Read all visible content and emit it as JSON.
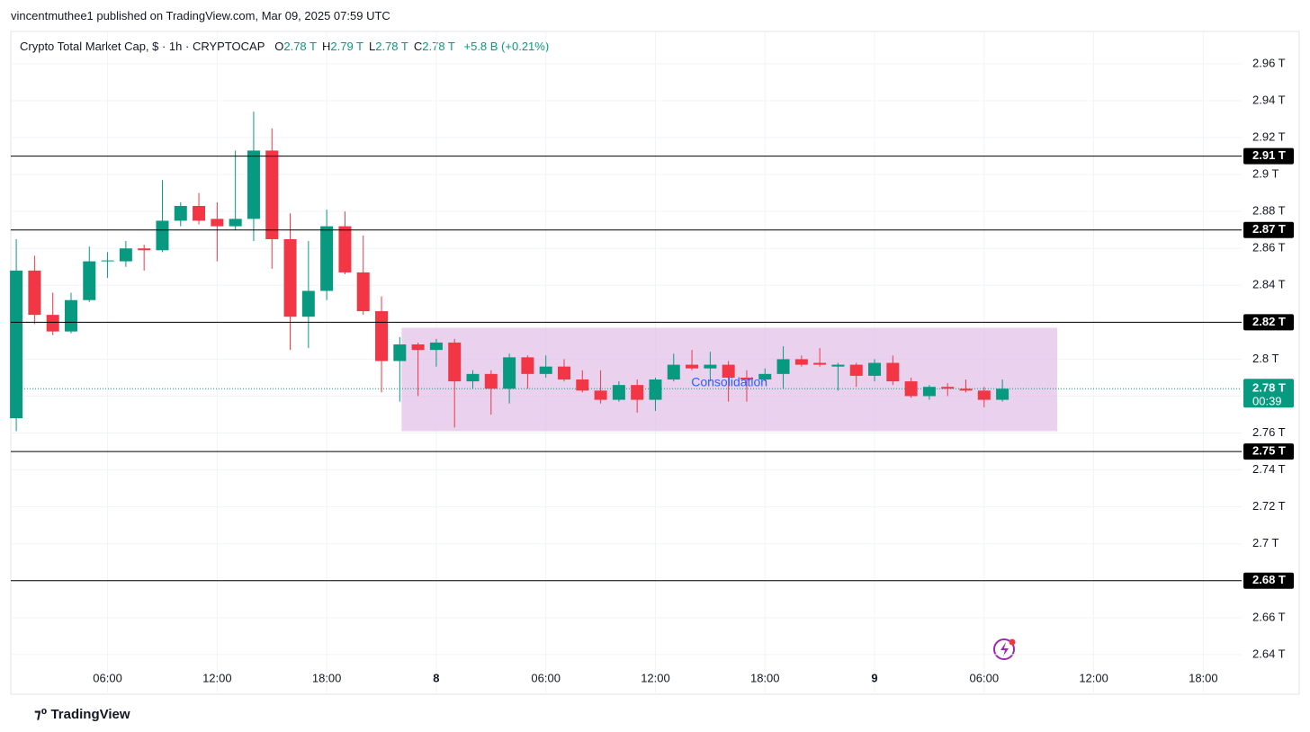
{
  "chart_data": {
    "type": "candlestick",
    "published": "vincentmuthee1 published on TradingView.com, Mar 09, 2025 07:59 UTC",
    "title": "Crypto Total Market Cap, $ · 1h · CRYPTOCAP",
    "ohlc_header": [
      {
        "key": "O",
        "value": "2.78 T"
      },
      {
        "key": "H",
        "value": "2.79 T"
      },
      {
        "key": "L",
        "value": "2.78 T"
      },
      {
        "key": "C",
        "value": "2.78 T"
      }
    ],
    "change": "+5.8 B (+0.21%)",
    "footer": "TradingView",
    "up_color": "#089981",
    "down_color": "#f23645",
    "open": [
      2.768,
      2.848,
      2.824,
      2.815,
      2.832,
      2.853,
      2.853,
      2.86,
      2.859,
      2.875,
      2.883,
      2.876,
      2.872,
      2.876,
      2.913,
      2.865,
      2.823,
      2.837,
      2.872,
      2.847,
      2.826,
      2.799,
      2.808,
      2.805,
      2.809,
      2.788,
      2.792,
      2.784,
      2.801,
      2.792,
      2.796,
      2.789,
      2.783,
      2.778,
      2.786,
      2.778,
      2.789,
      2.797,
      2.795,
      2.797,
      2.79,
      2.789,
      2.792,
      2.8,
      2.798,
      2.796,
      2.797,
      2.791,
      2.798,
      2.788,
      2.78,
      2.785,
      2.784,
      2.783,
      2.778
    ],
    "high": [
      2.865,
      2.856,
      2.836,
      2.836,
      2.861,
      2.858,
      2.864,
      2.862,
      2.897,
      2.885,
      2.89,
      2.885,
      2.913,
      2.934,
      2.925,
      2.879,
      2.864,
      2.881,
      2.88,
      2.867,
      2.834,
      2.812,
      2.809,
      2.811,
      2.811,
      2.794,
      2.794,
      2.803,
      2.802,
      2.802,
      2.8,
      2.794,
      2.794,
      2.788,
      2.789,
      2.79,
      2.803,
      2.805,
      2.804,
      2.799,
      2.794,
      2.795,
      2.807,
      2.802,
      2.806,
      2.798,
      2.798,
      2.8,
      2.802,
      2.79,
      2.786,
      2.787,
      2.789,
      2.785,
      2.789
    ],
    "low": [
      2.761,
      2.819,
      2.813,
      2.814,
      2.831,
      2.844,
      2.85,
      2.848,
      2.858,
      2.872,
      2.873,
      2.853,
      2.87,
      2.864,
      2.849,
      2.805,
      2.806,
      2.832,
      2.846,
      2.824,
      2.782,
      2.777,
      2.78,
      2.796,
      2.763,
      2.784,
      2.77,
      2.776,
      2.784,
      2.79,
      2.788,
      2.782,
      2.776,
      2.777,
      2.771,
      2.772,
      2.788,
      2.794,
      2.788,
      2.777,
      2.777,
      2.788,
      2.784,
      2.796,
      2.796,
      2.783,
      2.785,
      2.788,
      2.786,
      2.779,
      2.778,
      2.78,
      2.782,
      2.774,
      2.777
    ],
    "close": [
      2.848,
      2.824,
      2.815,
      2.832,
      2.853,
      2.8535,
      2.86,
      2.859,
      2.875,
      2.883,
      2.875,
      2.872,
      2.876,
      2.913,
      2.865,
      2.823,
      2.837,
      2.872,
      2.847,
      2.826,
      2.799,
      2.808,
      2.805,
      2.809,
      2.788,
      2.792,
      2.784,
      2.801,
      2.792,
      2.796,
      2.789,
      2.783,
      2.778,
      2.786,
      2.778,
      2.789,
      2.797,
      2.795,
      2.797,
      2.79,
      2.789,
      2.792,
      2.8,
      2.797,
      2.797,
      2.797,
      2.791,
      2.798,
      2.788,
      2.78,
      2.785,
      2.784,
      2.783,
      2.778,
      2.784
    ],
    "xlim": [
      -0.3,
      67.1
    ],
    "xticks": [
      {
        "value": 5,
        "label": "06:00"
      },
      {
        "value": 11,
        "label": "12:00"
      },
      {
        "value": 17,
        "label": "18:00"
      },
      {
        "value": 23,
        "label": "8"
      },
      {
        "value": 29,
        "label": "06:00"
      },
      {
        "value": 35,
        "label": "12:00"
      },
      {
        "value": 41,
        "label": "18:00"
      },
      {
        "value": 47,
        "label": "9"
      },
      {
        "value": 53,
        "label": "06:00"
      },
      {
        "value": 59,
        "label": "12:00"
      },
      {
        "value": 65,
        "label": "18:00"
      }
    ],
    "ylim": [
      2.6195,
      2.9775
    ],
    "yticks": [
      {
        "value": 2.96,
        "label": "2.96 T"
      },
      {
        "value": 2.94,
        "label": "2.94 T"
      },
      {
        "value": 2.92,
        "label": "2.92 T"
      },
      {
        "value": 2.9,
        "label": "2.9 T"
      },
      {
        "value": 2.88,
        "label": "2.88 T"
      },
      {
        "value": 2.86,
        "label": "2.86 T"
      },
      {
        "value": 2.84,
        "label": "2.84 T"
      },
      {
        "value": 2.82,
        "label": "2.82 T"
      },
      {
        "value": 2.8,
        "label": "2.8 T"
      },
      {
        "value": 2.78,
        "label": "2.78 T"
      },
      {
        "value": 2.76,
        "label": "2.76 T"
      },
      {
        "value": 2.74,
        "label": "2.74 T"
      },
      {
        "value": 2.72,
        "label": "2.72 T"
      },
      {
        "value": 2.7,
        "label": "2.7 T"
      },
      {
        "value": 2.68,
        "label": "2.68 T"
      },
      {
        "value": 2.66,
        "label": "2.66 T"
      },
      {
        "value": 2.64,
        "label": "2.64 T"
      }
    ],
    "grid": true,
    "levels": [
      {
        "value": 2.91,
        "label": "2.91 T"
      },
      {
        "value": 2.87,
        "label": "2.87 T"
      },
      {
        "value": 2.82,
        "label": "2.82 T"
      },
      {
        "value": 2.75,
        "label": "2.75 T"
      },
      {
        "value": 2.68,
        "label": "2.68 T"
      }
    ],
    "current_price": {
      "value": 2.784,
      "label": "2.78 T",
      "countdown": "00:39",
      "color": "#089981"
    },
    "box": {
      "x0": 21.1,
      "x1": 57,
      "y0": 2.761,
      "y1": 2.817,
      "label": "Consolidation",
      "color": "#e1bee7"
    }
  }
}
